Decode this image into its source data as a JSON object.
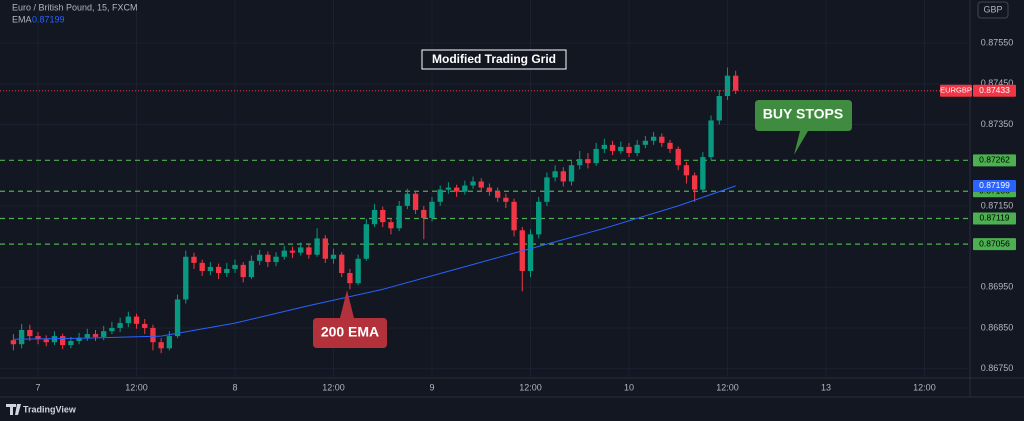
{
  "chart_data": {
    "type": "candlestick",
    "title": "Euro / British Pound, 15, FXCM",
    "currency": "GBP",
    "symbol_tag": "EURGBP",
    "brand": "TradingView",
    "annotations": [
      "Modified Trading Grid",
      "BUY STOPS",
      "200 EMA"
    ],
    "up_color": "#089981",
    "down_color": "#f23645",
    "grid": true,
    "xlim": [
      -3.66,
      113.55
    ],
    "xticks": [
      {
        "value": 0,
        "label": "7"
      },
      {
        "value": 12,
        "label": "12:00"
      },
      {
        "value": 24,
        "label": "8"
      },
      {
        "value": 36,
        "label": "12:00"
      },
      {
        "value": 48,
        "label": "9"
      },
      {
        "value": 60,
        "label": "12:00"
      },
      {
        "value": 72,
        "label": "10"
      },
      {
        "value": 84,
        "label": "12:00"
      },
      {
        "value": 96,
        "label": "13"
      },
      {
        "value": 108,
        "label": "12:00"
      }
    ],
    "ylim": [
      0.86727,
      0.87656
    ],
    "yticks": [
      {
        "value": 0.8755,
        "label": "0.87550"
      },
      {
        "value": 0.8745,
        "label": "0.87450"
      },
      {
        "value": 0.8735,
        "label": "0.87350"
      },
      {
        "value": 0.8715,
        "label": "0.87150"
      },
      {
        "value": 0.8695,
        "label": "0.86950"
      },
      {
        "value": 0.8685,
        "label": "0.86850"
      },
      {
        "value": 0.8675,
        "label": "0.86750"
      }
    ],
    "x": [
      -3,
      -2,
      -1,
      0,
      1,
      2,
      3,
      4,
      5,
      6,
      7,
      8,
      9,
      10,
      11,
      12,
      13,
      14,
      15,
      16,
      17,
      18,
      19,
      20,
      21,
      22,
      23,
      24,
      25,
      26,
      27,
      28,
      29,
      30,
      31,
      32,
      33,
      34,
      35,
      36,
      37,
      38,
      39,
      40,
      41,
      42,
      43,
      44,
      45,
      46,
      47,
      48,
      49,
      50,
      51,
      52,
      53,
      54,
      55,
      56,
      57,
      58,
      59,
      60,
      61,
      62,
      63,
      64,
      65,
      66,
      67,
      68,
      69,
      70,
      71,
      72,
      73,
      74,
      75,
      76,
      77,
      78,
      79,
      80,
      81,
      82,
      83,
      84,
      85
    ],
    "open": [
      0.8682,
      0.8681,
      0.86845,
      0.8683,
      0.86822,
      0.86815,
      0.8683,
      0.86808,
      0.86818,
      0.86826,
      0.86835,
      0.86828,
      0.86842,
      0.8685,
      0.86862,
      0.86878,
      0.8686,
      0.8685,
      0.86815,
      0.868,
      0.8683,
      0.8692,
      0.87025,
      0.8701,
      0.8699,
      0.87,
      0.86985,
      0.86995,
      0.87005,
      0.86975,
      0.87015,
      0.8703,
      0.87012,
      0.87025,
      0.8704,
      0.87035,
      0.87048,
      0.8703,
      0.8707,
      0.8702,
      0.8703,
      0.86985,
      0.8696,
      0.8702,
      0.87105,
      0.8714,
      0.8711,
      0.87095,
      0.8715,
      0.8718,
      0.8714,
      0.8712,
      0.8716,
      0.8719,
      0.87195,
      0.87185,
      0.872,
      0.8721,
      0.87195,
      0.87185,
      0.8717,
      0.8716,
      0.8709,
      0.8699,
      0.8708,
      0.8716,
      0.8722,
      0.87235,
      0.8721,
      0.8725,
      0.87265,
      0.87255,
      0.8729,
      0.873,
      0.87285,
      0.87295,
      0.8728,
      0.873,
      0.8731,
      0.8732,
      0.87305,
      0.8729,
      0.8725,
      0.87225,
      0.8719,
      0.8727,
      0.8736,
      0.8742,
      0.8747
    ],
    "high": [
      0.86835,
      0.8686,
      0.86858,
      0.8684,
      0.86832,
      0.86842,
      0.86836,
      0.86828,
      0.86838,
      0.86848,
      0.86845,
      0.86855,
      0.86865,
      0.86875,
      0.8689,
      0.86885,
      0.86872,
      0.86858,
      0.86825,
      0.86842,
      0.86932,
      0.8704,
      0.87035,
      0.87018,
      0.87012,
      0.87008,
      0.8701,
      0.87018,
      0.87012,
      0.87028,
      0.87042,
      0.87038,
      0.87036,
      0.87052,
      0.8705,
      0.8706,
      0.87058,
      0.87095,
      0.87078,
      0.87045,
      0.87036,
      0.86995,
      0.8703,
      0.87118,
      0.87155,
      0.87148,
      0.8712,
      0.87162,
      0.87192,
      0.87188,
      0.8715,
      0.87172,
      0.872,
      0.87208,
      0.87202,
      0.87212,
      0.87222,
      0.87218,
      0.87205,
      0.87195,
      0.8718,
      0.87168,
      0.87098,
      0.87092,
      0.87172,
      0.87232,
      0.8725,
      0.87245,
      0.87262,
      0.87285,
      0.8728,
      0.87305,
      0.87315,
      0.8731,
      0.87308,
      0.87305,
      0.87312,
      0.87322,
      0.87332,
      0.87328,
      0.87312,
      0.87296,
      0.87258,
      0.87232,
      0.87282,
      0.87372,
      0.87435,
      0.8749,
      0.87482
    ],
    "low": [
      0.86795,
      0.868,
      0.86818,
      0.8681,
      0.86805,
      0.86808,
      0.86798,
      0.868,
      0.8681,
      0.86818,
      0.86818,
      0.8682,
      0.86835,
      0.8684,
      0.86852,
      0.86848,
      0.86835,
      0.86795,
      0.86788,
      0.86795,
      0.86825,
      0.8691,
      0.86995,
      0.86978,
      0.8698,
      0.8697,
      0.86975,
      0.86985,
      0.86962,
      0.8697,
      0.87005,
      0.87,
      0.87002,
      0.87018,
      0.87022,
      0.87028,
      0.8702,
      0.87025,
      0.8701,
      0.87008,
      0.86975,
      0.86945,
      0.86955,
      0.87015,
      0.87098,
      0.87098,
      0.8708,
      0.87088,
      0.87142,
      0.8713,
      0.87068,
      0.87112,
      0.8715,
      0.8718,
      0.87172,
      0.87178,
      0.87192,
      0.87185,
      0.87175,
      0.8716,
      0.87145,
      0.87075,
      0.8694,
      0.86975,
      0.8707,
      0.8715,
      0.8721,
      0.87198,
      0.872,
      0.8724,
      0.87242,
      0.87248,
      0.8728,
      0.87275,
      0.87278,
      0.8727,
      0.87272,
      0.87292,
      0.873,
      0.87295,
      0.8728,
      0.87238,
      0.87205,
      0.8716,
      0.87182,
      0.87262,
      0.8735,
      0.8741,
      0.87425
    ],
    "close": [
      0.8681,
      0.86845,
      0.8683,
      0.86822,
      0.86815,
      0.8683,
      0.86808,
      0.86818,
      0.86826,
      0.86835,
      0.86828,
      0.86842,
      0.8685,
      0.86862,
      0.86878,
      0.8686,
      0.8685,
      0.86815,
      0.868,
      0.8683,
      0.8692,
      0.87025,
      0.8701,
      0.8699,
      0.87,
      0.86985,
      0.86995,
      0.87005,
      0.86975,
      0.87015,
      0.8703,
      0.87012,
      0.87025,
      0.8704,
      0.87035,
      0.87048,
      0.8703,
      0.8707,
      0.8702,
      0.8703,
      0.86985,
      0.8696,
      0.8702,
      0.87105,
      0.8714,
      0.8711,
      0.87095,
      0.8715,
      0.8718,
      0.8714,
      0.8712,
      0.8716,
      0.8719,
      0.87195,
      0.87185,
      0.872,
      0.8721,
      0.87195,
      0.87185,
      0.8717,
      0.8716,
      0.8709,
      0.8699,
      0.8708,
      0.8716,
      0.8722,
      0.87235,
      0.8721,
      0.8725,
      0.87265,
      0.87255,
      0.8729,
      0.873,
      0.87285,
      0.87295,
      0.8728,
      0.873,
      0.8731,
      0.8732,
      0.87305,
      0.8729,
      0.8725,
      0.87225,
      0.8719,
      0.8727,
      0.8736,
      0.8742,
      0.8747,
      0.87433
    ],
    "ema": {
      "name": "EMA",
      "color": "#2962ff",
      "x": [
        -3,
        6,
        15,
        24,
        33,
        42,
        51,
        60,
        69,
        78,
        85
      ],
      "values": [
        0.86822,
        0.86825,
        0.8683,
        0.86862,
        0.86905,
        0.86945,
        0.86995,
        0.87045,
        0.87095,
        0.8715,
        0.87199
      ]
    },
    "levels": {
      "color": "#4caf50",
      "values": [
        0.87262,
        0.87186,
        0.87119,
        0.87056
      ]
    }
  }
}
